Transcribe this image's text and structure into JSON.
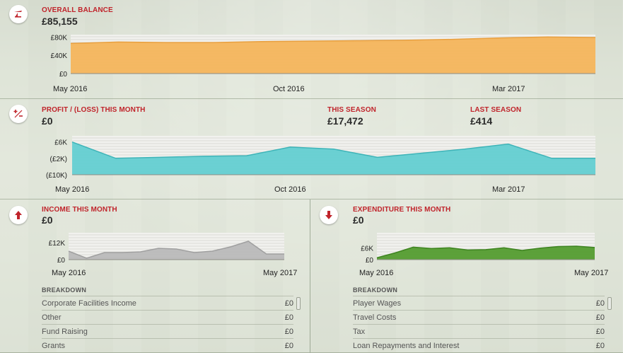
{
  "balance": {
    "label": "OVERALL BALANCE",
    "value": "£85,155",
    "y_ticks": [
      "£80K",
      "£40K",
      "£0"
    ],
    "x_ticks": [
      "May 2016",
      "Oct 2016",
      "Mar 2017"
    ]
  },
  "profit": {
    "label": "PROFIT / (LOSS) THIS MONTH",
    "value": "£0",
    "season_label": "THIS SEASON",
    "season_value": "£17,472",
    "last_label": "LAST SEASON",
    "last_value": "£414",
    "y_ticks": [
      "£6K",
      "(£2K)",
      "(£10K)"
    ],
    "x_ticks": [
      "May 2016",
      "Oct 2016",
      "Mar 2017"
    ]
  },
  "income": {
    "label": "INCOME THIS MONTH",
    "value": "£0",
    "y_ticks": [
      "£12K",
      "£0"
    ],
    "x_ticks": [
      "May 2016",
      "May 2017"
    ],
    "breakdown_label": "BREAKDOWN",
    "rows": [
      {
        "name": "Corporate Facilities Income",
        "value": "£0"
      },
      {
        "name": "Other",
        "value": "£0"
      },
      {
        "name": "Fund Raising",
        "value": "£0"
      },
      {
        "name": "Grants",
        "value": "£0"
      }
    ]
  },
  "expenditure": {
    "label": "EXPENDITURE THIS MONTH",
    "value": "£0",
    "y_ticks": [
      "£6K",
      "£0"
    ],
    "x_ticks": [
      "May 2016",
      "May 2017"
    ],
    "breakdown_label": "BREAKDOWN",
    "rows": [
      {
        "name": "Player Wages",
        "value": "£0"
      },
      {
        "name": "Travel Costs",
        "value": "£0"
      },
      {
        "name": "Tax",
        "value": "£0"
      },
      {
        "name": "Loan Repayments and Interest",
        "value": "£0"
      }
    ]
  },
  "colors": {
    "accent_red": "#c0242b",
    "balance_fill": "#f5b357",
    "profit_fill": "#5fcdd0",
    "income_fill": "#b8b8b8",
    "expenditure_fill": "#4f9a2a"
  },
  "chart_data": [
    {
      "type": "area",
      "name": "overall-balance",
      "x": [
        "May 2016",
        "Jun 2016",
        "Jul 2016",
        "Aug 2016",
        "Sep 2016",
        "Oct 2016",
        "Nov 2016",
        "Dec 2016",
        "Jan 2017",
        "Feb 2017",
        "Mar 2017",
        "Apr 2017"
      ],
      "values": [
        66000,
        69000,
        68000,
        68000,
        70000,
        71000,
        72000,
        73000,
        75000,
        78000,
        80000,
        79000
      ],
      "ylim": [
        0,
        85155
      ],
      "y_ticks": [
        80000,
        40000,
        0
      ],
      "x_ticks": [
        "May 2016",
        "Oct 2016",
        "Mar 2017"
      ]
    },
    {
      "type": "area",
      "name": "profit-loss",
      "x": [
        "May 2016",
        "Jun 2016",
        "Jul 2016",
        "Aug 2016",
        "Sep 2016",
        "Oct 2016",
        "Nov 2016",
        "Dec 2016",
        "Jan 2017",
        "Feb 2017",
        "Mar 2017",
        "Apr 2017",
        "May 2017"
      ],
      "values": [
        6000,
        -2000,
        -1500,
        -1000,
        -700,
        3500,
        2500,
        -1500,
        500,
        2500,
        5000,
        -2000,
        -2000
      ],
      "ylim": [
        -10000,
        9000
      ],
      "y_ticks": [
        6000,
        -2000,
        -10000
      ],
      "x_ticks": [
        "May 2016",
        "Oct 2016",
        "Mar 2017"
      ]
    },
    {
      "type": "area",
      "name": "income",
      "x": [
        "May 2016",
        "Jun 2016",
        "Jul 2016",
        "Aug 2016",
        "Sep 2016",
        "Oct 2016",
        "Nov 2016",
        "Dec 2016",
        "Jan 2017",
        "Feb 2017",
        "Mar 2017",
        "Apr 2017",
        "May 2017"
      ],
      "values": [
        6000,
        1000,
        5000,
        5000,
        5500,
        8000,
        7500,
        5000,
        6000,
        9000,
        13000,
        4000,
        4000
      ],
      "ylim": [
        0,
        19000
      ],
      "y_ticks": [
        12000,
        0
      ],
      "x_ticks": [
        "May 2016",
        "May 2017"
      ]
    },
    {
      "type": "area",
      "name": "expenditure",
      "x": [
        "May 2016",
        "Jun 2016",
        "Jul 2016",
        "Aug 2016",
        "Sep 2016",
        "Oct 2016",
        "Nov 2016",
        "Dec 2016",
        "Jan 2017",
        "Feb 2017",
        "Mar 2017",
        "Apr 2017",
        "May 2017"
      ],
      "values": [
        1000,
        3500,
        6500,
        5800,
        6200,
        5000,
        5200,
        6200,
        4800,
        6000,
        6800,
        7000,
        6300
      ],
      "ylim": [
        0,
        14000
      ],
      "y_ticks": [
        6000,
        0
      ],
      "x_ticks": [
        "May 2016",
        "May 2017"
      ]
    }
  ]
}
